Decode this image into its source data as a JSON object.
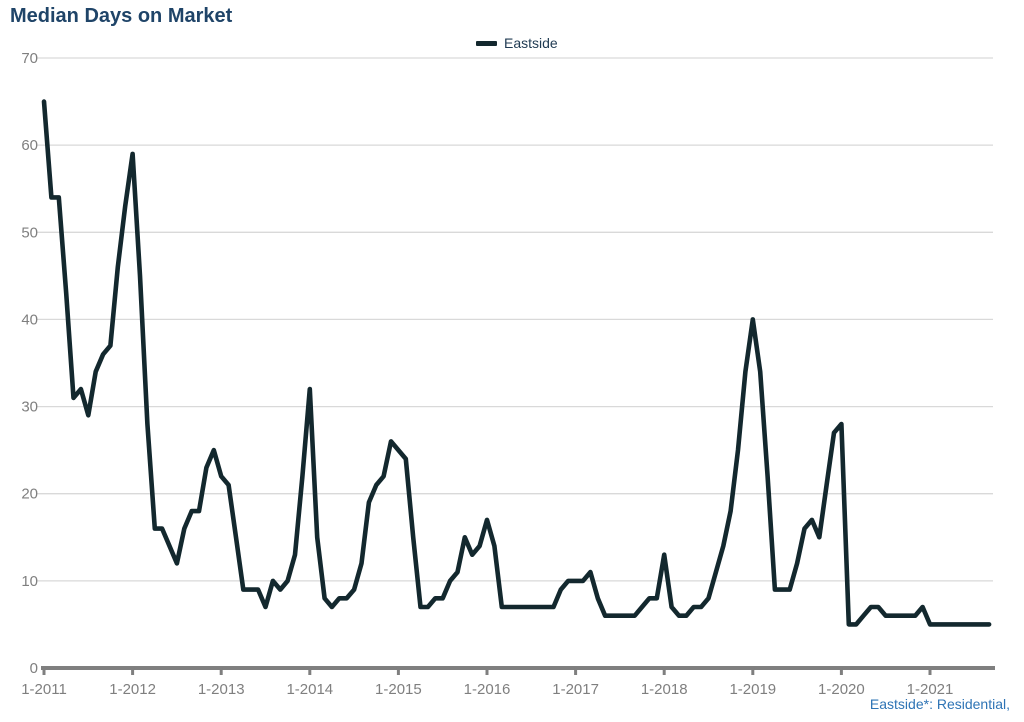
{
  "title": "Median Days on Market",
  "legend": {
    "label": "Eastside"
  },
  "footer": {
    "note": "Eastside*: Residential,"
  },
  "colors": {
    "title": "#1f4468",
    "legend_text": "#1f3a52",
    "footnote_text": "#2e74b5",
    "line": "#13282e",
    "gridline": "#d9d9d9",
    "axis_line": "#7f7f7f",
    "tick_label": "#7f7f7f",
    "background": "#ffffff"
  },
  "chart_data": {
    "type": "line",
    "title": "Median Days on Market",
    "xlabel": "",
    "ylabel": "",
    "legend_position": "top-center",
    "grid": "horizontal",
    "ylim": [
      0,
      70
    ],
    "y_ticks": [
      0,
      10,
      20,
      30,
      40,
      50,
      60,
      70
    ],
    "x_tick_labels": [
      "1-2011",
      "1-2012",
      "1-2013",
      "1-2014",
      "1-2015",
      "1-2016",
      "1-2017",
      "1-2018",
      "1-2019",
      "1-2020",
      "1-2021"
    ],
    "frequency": "monthly",
    "x_start": "2011-01",
    "x_end": "2021-09",
    "series": [
      {
        "name": "Eastside",
        "color": "#13282e",
        "years": [
          {
            "year": 2011,
            "values": [
              65,
              54,
              54,
              43,
              31,
              32,
              29,
              34,
              36,
              37,
              46,
              53
            ]
          },
          {
            "year": 2012,
            "values": [
              59,
              45,
              28,
              16,
              16,
              14,
              12,
              16,
              18,
              18,
              23,
              25
            ]
          },
          {
            "year": 2013,
            "values": [
              22,
              21,
              15,
              9,
              9,
              9,
              7,
              10,
              9,
              10,
              13,
              22
            ]
          },
          {
            "year": 2014,
            "values": [
              32,
              15,
              8,
              7,
              8,
              8,
              9,
              12,
              19,
              21,
              22,
              26
            ]
          },
          {
            "year": 2015,
            "values": [
              25,
              24,
              15,
              7,
              7,
              8,
              8,
              10,
              11,
              15,
              13,
              14
            ]
          },
          {
            "year": 2016,
            "values": [
              17,
              14,
              7,
              7,
              7,
              7,
              7,
              7,
              7,
              7,
              9,
              10
            ]
          },
          {
            "year": 2017,
            "values": [
              10,
              10,
              11,
              8,
              6,
              6,
              6,
              6,
              6,
              7,
              8,
              8
            ]
          },
          {
            "year": 2018,
            "values": [
              13,
              7,
              6,
              6,
              7,
              7,
              8,
              11,
              14,
              18,
              25,
              34
            ]
          },
          {
            "year": 2019,
            "values": [
              40,
              34,
              22,
              9,
              9,
              9,
              12,
              16,
              17,
              15,
              21,
              27
            ]
          },
          {
            "year": 2020,
            "values": [
              28,
              5,
              5,
              6,
              7,
              7,
              6,
              6,
              6,
              6,
              6,
              7
            ]
          },
          {
            "year": 2021,
            "values": [
              5,
              5,
              5,
              5,
              5,
              5,
              5,
              5,
              5
            ]
          }
        ]
      }
    ]
  }
}
